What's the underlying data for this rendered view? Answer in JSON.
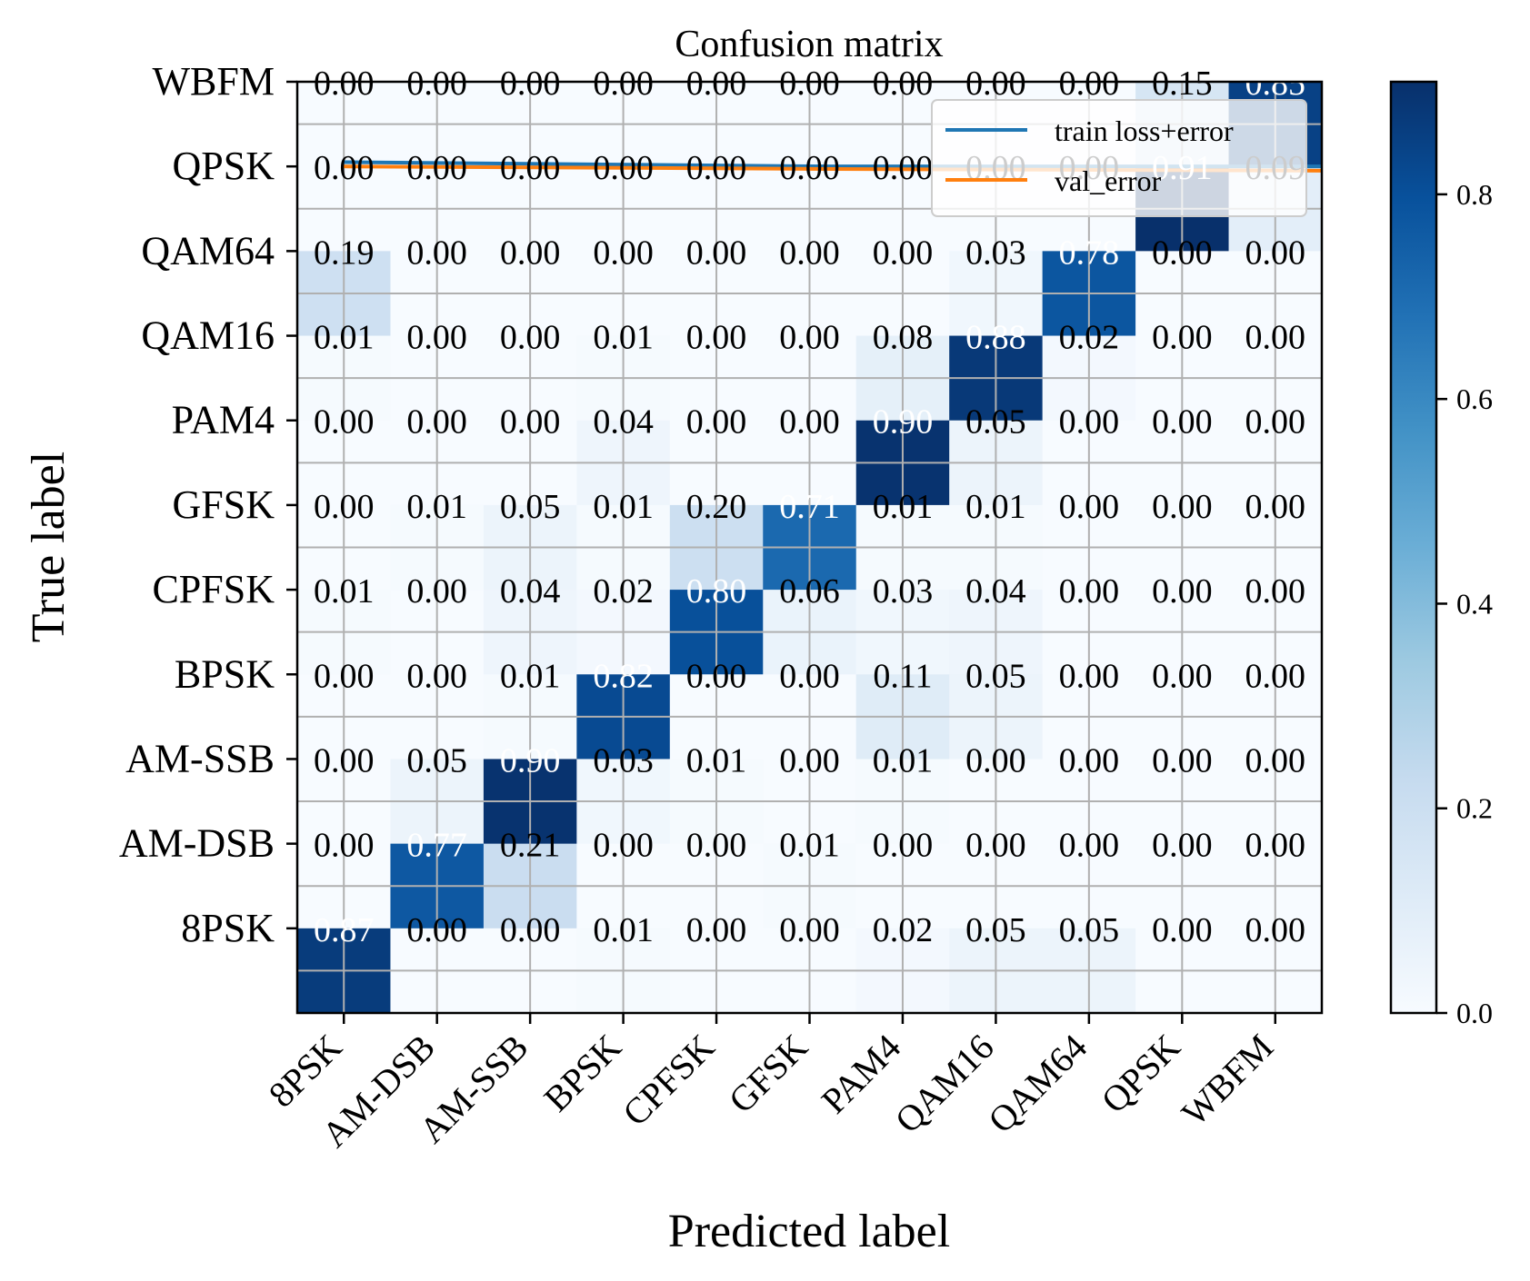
{
  "chart_data": {
    "type": "heatmap",
    "title": "Confusion matrix",
    "xlabel": "Predicted label",
    "ylabel": "True label",
    "x_categories": [
      "8PSK",
      "AM-DSB",
      "AM-SSB",
      "BPSK",
      "CPFSK",
      "GFSK",
      "PAM4",
      "QAM16",
      "QAM64",
      "QPSK",
      "WBFM"
    ],
    "y_categories": [
      "WBFM",
      "QPSK",
      "QAM64",
      "QAM16",
      "PAM4",
      "GFSK",
      "CPFSK",
      "BPSK",
      "AM-SSB",
      "AM-DSB",
      "8PSK"
    ],
    "matrix": [
      [
        0.0,
        0.0,
        0.0,
        0.0,
        0.0,
        0.0,
        0.0,
        0.0,
        0.0,
        0.15,
        0.85
      ],
      [
        0.0,
        0.0,
        0.0,
        0.0,
        0.0,
        0.0,
        0.0,
        0.0,
        0.0,
        0.91,
        0.09
      ],
      [
        0.19,
        0.0,
        0.0,
        0.0,
        0.0,
        0.0,
        0.0,
        0.03,
        0.78,
        0.0,
        0.0
      ],
      [
        0.01,
        0.0,
        0.0,
        0.01,
        0.0,
        0.0,
        0.08,
        0.88,
        0.02,
        0.0,
        0.0
      ],
      [
        0.0,
        0.0,
        0.0,
        0.04,
        0.0,
        0.0,
        0.9,
        0.05,
        0.0,
        0.0,
        0.0
      ],
      [
        0.0,
        0.01,
        0.05,
        0.01,
        0.2,
        0.71,
        0.01,
        0.01,
        0.0,
        0.0,
        0.0
      ],
      [
        0.01,
        0.0,
        0.04,
        0.02,
        0.8,
        0.06,
        0.03,
        0.04,
        0.0,
        0.0,
        0.0
      ],
      [
        0.0,
        0.0,
        0.01,
        0.82,
        0.0,
        0.0,
        0.11,
        0.05,
        0.0,
        0.0,
        0.0
      ],
      [
        0.0,
        0.05,
        0.9,
        0.03,
        0.01,
        0.0,
        0.01,
        0.0,
        0.0,
        0.0,
        0.0
      ],
      [
        0.0,
        0.77,
        0.21,
        0.0,
        0.0,
        0.01,
        0.0,
        0.0,
        0.0,
        0.0,
        0.0
      ],
      [
        0.87,
        0.0,
        0.0,
        0.01,
        0.0,
        0.0,
        0.02,
        0.05,
        0.05,
        0.0,
        0.0
      ]
    ],
    "colorbar": {
      "range": [
        0.0,
        0.91
      ],
      "ticks": [
        "0.0",
        "0.2",
        "0.4",
        "0.6",
        "0.8"
      ],
      "colormap": "Blues",
      "colors": [
        "#f7fbff",
        "#deebf7",
        "#c6dbef",
        "#9ecae1",
        "#6baed6",
        "#4292c6",
        "#2171b5",
        "#08519c",
        "#08306b"
      ]
    },
    "grid": true,
    "legend": {
      "placement": "top-right",
      "entries": [
        {
          "label": "train loss+error",
          "color": "#1f77b4"
        },
        {
          "label": "val_error",
          "color": "#ff7f0e"
        }
      ]
    },
    "overlay_lines": [
      {
        "name": "train loss+error",
        "color": "#1f77b4",
        "y": [
          9.55,
          9.5,
          9.5
        ]
      },
      {
        "name": "val_error",
        "color": "#ff7f0e",
        "y": [
          9.5,
          9.47,
          9.45
        ]
      }
    ]
  }
}
